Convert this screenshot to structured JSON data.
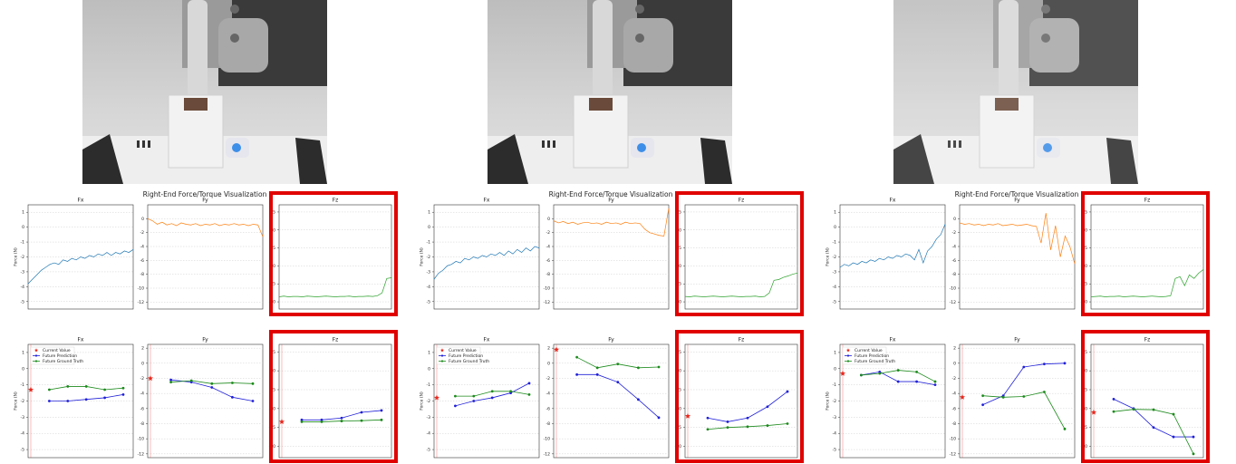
{
  "suptitles": [
    "Right-End Force/Torque Visualization",
    "Right-End Force/Torque Visualization",
    "Right-End Force/Torque Visualization"
  ],
  "chart_data": [
    {
      "type": "line",
      "title": "Fx",
      "ylabel": "Force (N)",
      "ylim": [
        -5.5,
        1.5
      ],
      "yticks": [
        1,
        0,
        -1,
        -2,
        -3,
        -4,
        -5
      ],
      "grid": true,
      "series": [
        {
          "color": "#1f77b4",
          "values": [
            -3.8,
            -3.5,
            -3.2,
            -2.9,
            -2.7,
            -2.5,
            -2.4,
            -2.5,
            -2.2,
            -2.3,
            -2.1,
            -2.2,
            -2.0,
            -2.1,
            -1.9,
            -2.0,
            -1.8,
            -1.9,
            -1.7,
            -1.9,
            -1.7,
            -1.8,
            -1.6,
            -1.7,
            -1.5
          ]
        }
      ]
    },
    {
      "type": "line",
      "title": "Fy",
      "ylim": [
        -13,
        2
      ],
      "yticks": [
        0,
        -2,
        -4,
        -6,
        -8,
        -10,
        -12
      ],
      "grid": true,
      "series": [
        {
          "color": "#ff7f0e",
          "values": [
            0,
            -0.3,
            -0.8,
            -0.5,
            -0.9,
            -0.7,
            -1.0,
            -0.6,
            -0.8,
            -0.9,
            -0.7,
            -1.0,
            -0.8,
            -0.9,
            -0.7,
            -1.0,
            -0.8,
            -0.9,
            -0.7,
            -0.9,
            -0.8,
            -1.0,
            -0.8,
            -0.9,
            -2.6
          ]
        }
      ]
    },
    {
      "type": "line",
      "title": "Fz",
      "ylim": [
        -22,
        7
      ],
      "yticks": [
        5,
        0,
        -5,
        -10,
        -15,
        -20
      ],
      "grid": true,
      "highlight": true,
      "series": [
        {
          "color": "#2ca02c",
          "values": [
            -18.6,
            -18.4,
            -18.6,
            -18.5,
            -18.5,
            -18.6,
            -18.4,
            -18.5,
            -18.6,
            -18.5,
            -18.4,
            -18.5,
            -18.6,
            -18.5,
            -18.5,
            -18.4,
            -18.6,
            -18.5,
            -18.5,
            -18.4,
            -18.5,
            -18.3,
            -17.5,
            -13.5,
            -13.3
          ]
        }
      ]
    },
    {
      "type": "line",
      "title": "Fx",
      "ylabel": "Force (N)",
      "ylim": [
        -5.5,
        1.5
      ],
      "yticks": [
        1,
        0,
        -1,
        -2,
        -3,
        -4,
        -5
      ],
      "grid": true,
      "legend": "upper left",
      "series": [
        {
          "name": "Current Value",
          "color": "#e8281e",
          "marker": "star",
          "values": [
            -1.3,
            null,
            null,
            null,
            null,
            null
          ]
        },
        {
          "name": "Future Prediction",
          "color": "#2020d8",
          "marker": "o",
          "values": [
            null,
            -2.0,
            -2.0,
            -1.9,
            -1.8,
            -1.6
          ]
        },
        {
          "name": "Future Ground Truth",
          "color": "#1c8a1c",
          "marker": "o",
          "values": [
            null,
            -1.3,
            -1.1,
            -1.1,
            -1.3,
            -1.2
          ]
        }
      ]
    },
    {
      "type": "line",
      "title": "Fy",
      "ylim": [
        -12.5,
        2.5
      ],
      "yticks": [
        2,
        0,
        -2,
        -4,
        -6,
        -8,
        -10,
        -12
      ],
      "grid": true,
      "series": [
        {
          "name": "Current Value",
          "color": "#e8281e",
          "marker": "star",
          "values": [
            -2.0,
            null,
            null,
            null,
            null,
            null
          ]
        },
        {
          "name": "Future Prediction",
          "color": "#2020d8",
          "marker": "o",
          "values": [
            null,
            -2.2,
            -2.5,
            -3.2,
            -4.5,
            -5.0
          ]
        },
        {
          "name": "Future Ground Truth",
          "color": "#1c8a1c",
          "marker": "o",
          "values": [
            null,
            -2.5,
            -2.3,
            -2.7,
            -2.6,
            -2.7
          ]
        }
      ]
    },
    {
      "type": "line",
      "title": "Fz",
      "ylim": [
        -23,
        7
      ],
      "yticks": [
        5,
        0,
        -5,
        -10,
        -15,
        -20
      ],
      "grid": true,
      "highlight": true,
      "series": [
        {
          "name": "Current Value",
          "color": "#e8281e",
          "marker": "star",
          "values": [
            -13.5,
            null,
            null,
            null,
            null,
            null
          ]
        },
        {
          "name": "Future Prediction",
          "color": "#2020d8",
          "marker": "o",
          "values": [
            null,
            -13,
            -13,
            -12.5,
            -11,
            -10.5
          ]
        },
        {
          "name": "Future Ground Truth",
          "color": "#1c8a1c",
          "marker": "o",
          "values": [
            null,
            -13.5,
            -13.5,
            -13.3,
            -13.2,
            -13
          ]
        }
      ]
    },
    {
      "type": "line",
      "title": "Fx",
      "ylabel": "Force (N)",
      "ylim": [
        -5.5,
        1.5
      ],
      "yticks": [
        1,
        0,
        -1,
        -2,
        -3,
        -4,
        -5
      ],
      "grid": true,
      "series": [
        {
          "color": "#1f77b4",
          "values": [
            -3.5,
            -3.1,
            -2.9,
            -2.6,
            -2.5,
            -2.3,
            -2.4,
            -2.1,
            -2.2,
            -2.0,
            -2.1,
            -1.9,
            -2.0,
            -1.8,
            -1.9,
            -1.7,
            -1.9,
            -1.6,
            -1.8,
            -1.5,
            -1.7,
            -1.4,
            -1.6,
            -1.3,
            -1.4
          ]
        }
      ]
    },
    {
      "type": "line",
      "title": "Fy",
      "ylim": [
        -13,
        2
      ],
      "yticks": [
        0,
        -2,
        -4,
        -6,
        -8,
        -10,
        -12
      ],
      "grid": true,
      "series": [
        {
          "color": "#ff7f0e",
          "values": [
            -0.3,
            -0.6,
            -0.4,
            -0.7,
            -0.5,
            -0.8,
            -0.6,
            -0.5,
            -0.7,
            -0.6,
            -0.8,
            -0.5,
            -0.7,
            -0.6,
            -0.8,
            -0.5,
            -0.7,
            -0.6,
            -0.7,
            -1.5,
            -2.0,
            -2.2,
            -2.4,
            -2.5,
            1.5
          ]
        }
      ]
    },
    {
      "type": "line",
      "title": "Fz",
      "ylim": [
        -22,
        7
      ],
      "yticks": [
        5,
        0,
        -5,
        -10,
        -15,
        -20
      ],
      "grid": true,
      "highlight": true,
      "series": [
        {
          "color": "#2ca02c",
          "values": [
            -18.5,
            -18.6,
            -18.4,
            -18.5,
            -18.6,
            -18.5,
            -18.4,
            -18.5,
            -18.6,
            -18.5,
            -18.4,
            -18.5,
            -18.6,
            -18.5,
            -18.5,
            -18.4,
            -18.6,
            -18.5,
            -17.5,
            -14.0,
            -13.8,
            -13.2,
            -12.8,
            -12.3,
            -12.0
          ]
        }
      ]
    },
    {
      "type": "line",
      "title": "Fx",
      "ylabel": "Force (N)",
      "ylim": [
        -5.5,
        1.5
      ],
      "yticks": [
        1,
        0,
        -1,
        -2,
        -3,
        -4,
        -5
      ],
      "grid": true,
      "legend": "upper left",
      "series": [
        {
          "name": "Current Value",
          "color": "#e8281e",
          "marker": "star",
          "values": [
            -1.8,
            null,
            null,
            null,
            null,
            null
          ]
        },
        {
          "name": "Future Prediction",
          "color": "#2020d8",
          "marker": "o",
          "values": [
            null,
            -2.3,
            -2.0,
            -1.8,
            -1.5,
            -0.9
          ]
        },
        {
          "name": "Future Ground Truth",
          "color": "#1c8a1c",
          "marker": "o",
          "values": [
            null,
            -1.7,
            -1.7,
            -1.4,
            -1.4,
            -1.6
          ]
        }
      ]
    },
    {
      "type": "line",
      "title": "Fy",
      "ylim": [
        -12.5,
        2.5
      ],
      "yticks": [
        2,
        0,
        -2,
        -4,
        -6,
        -8,
        -10,
        -12
      ],
      "grid": true,
      "series": [
        {
          "name": "Current Value",
          "color": "#e8281e",
          "marker": "star",
          "values": [
            1.8,
            null,
            null,
            null,
            null,
            null
          ]
        },
        {
          "name": "Future Prediction",
          "color": "#2020d8",
          "marker": "o",
          "values": [
            null,
            -1.5,
            -1.5,
            -2.5,
            -4.8,
            -7.2
          ]
        },
        {
          "name": "Future Ground Truth",
          "color": "#1c8a1c",
          "marker": "o",
          "values": [
            null,
            0.8,
            -0.6,
            -0.1,
            -0.6,
            -0.5
          ]
        }
      ]
    },
    {
      "type": "line",
      "title": "Fz",
      "ylim": [
        -23,
        7
      ],
      "yticks": [
        5,
        0,
        -5,
        -10,
        -15,
        -20
      ],
      "grid": true,
      "highlight": true,
      "series": [
        {
          "name": "Current Value",
          "color": "#e8281e",
          "marker": "star",
          "values": [
            -12,
            null,
            null,
            null,
            null,
            null
          ]
        },
        {
          "name": "Future Prediction",
          "color": "#2020d8",
          "marker": "o",
          "values": [
            null,
            -12.5,
            -13.5,
            -12.5,
            -9.5,
            -5.5
          ]
        },
        {
          "name": "Future Ground Truth",
          "color": "#1c8a1c",
          "marker": "o",
          "values": [
            null,
            -15.5,
            -15,
            -14.8,
            -14.5,
            -14
          ]
        }
      ]
    },
    {
      "type": "line",
      "title": "Fx",
      "ylabel": "Force (N)",
      "ylim": [
        -5.5,
        1.5
      ],
      "yticks": [
        1,
        0,
        -1,
        -2,
        -3,
        -4,
        -5
      ],
      "grid": true,
      "series": [
        {
          "color": "#1f77b4",
          "values": [
            -2.7,
            -2.5,
            -2.6,
            -2.4,
            -2.5,
            -2.3,
            -2.4,
            -2.2,
            -2.3,
            -2.1,
            -2.2,
            -2.0,
            -2.1,
            -1.9,
            -2.0,
            -1.8,
            -1.9,
            -2.2,
            -1.5,
            -2.4,
            -1.6,
            -1.3,
            -0.8,
            -0.5,
            0.2
          ]
        }
      ]
    },
    {
      "type": "line",
      "title": "Fy",
      "ylim": [
        -13,
        2
      ],
      "yticks": [
        0,
        -2,
        -4,
        -6,
        -8,
        -10,
        -12
      ],
      "grid": true,
      "series": [
        {
          "color": "#ff7f0e",
          "values": [
            -0.6,
            -0.8,
            -0.7,
            -0.9,
            -0.8,
            -1.0,
            -0.8,
            -0.9,
            -0.7,
            -1.0,
            -0.9,
            -0.8,
            -1.0,
            -0.9,
            -0.8,
            -1.0,
            -1.1,
            -3.5,
            0.8,
            -4.5,
            -1.0,
            -5.5,
            -2.5,
            -4.0,
            -6.5
          ]
        }
      ]
    },
    {
      "type": "line",
      "title": "Fz",
      "ylim": [
        -22,
        7
      ],
      "yticks": [
        5,
        0,
        -5,
        -10,
        -15,
        -20
      ],
      "grid": true,
      "highlight": true,
      "series": [
        {
          "color": "#2ca02c",
          "values": [
            -18.6,
            -18.5,
            -18.4,
            -18.6,
            -18.5,
            -18.5,
            -18.4,
            -18.6,
            -18.5,
            -18.4,
            -18.5,
            -18.6,
            -18.5,
            -18.4,
            -18.5,
            -18.6,
            -18.5,
            -18.3,
            -13.5,
            -13.0,
            -15.5,
            -12.5,
            -13.5,
            -12.0,
            -11.0
          ]
        }
      ]
    },
    {
      "type": "line",
      "title": "Fx",
      "ylabel": "Force (N)",
      "ylim": [
        -5.5,
        1.5
      ],
      "yticks": [
        1,
        0,
        -1,
        -2,
        -3,
        -4,
        -5
      ],
      "grid": true,
      "legend": "upper left",
      "series": [
        {
          "name": "Current Value",
          "color": "#e8281e",
          "marker": "star",
          "values": [
            -0.3,
            null,
            null,
            null,
            null,
            null
          ]
        },
        {
          "name": "Future Prediction",
          "color": "#2020d8",
          "marker": "o",
          "values": [
            null,
            -0.4,
            -0.2,
            -0.8,
            -0.8,
            -1.0
          ]
        },
        {
          "name": "Future Ground Truth",
          "color": "#1c8a1c",
          "marker": "o",
          "values": [
            null,
            -0.4,
            -0.3,
            -0.1,
            -0.2,
            -0.8
          ]
        }
      ]
    },
    {
      "type": "line",
      "title": "Fy",
      "ylim": [
        -12.5,
        2.5
      ],
      "yticks": [
        2,
        0,
        -2,
        -4,
        -6,
        -8,
        -10,
        -12
      ],
      "grid": true,
      "series": [
        {
          "name": "Current Value",
          "color": "#e8281e",
          "marker": "star",
          "values": [
            -4.5,
            null,
            null,
            null,
            null,
            null
          ]
        },
        {
          "name": "Future Prediction",
          "color": "#2020d8",
          "marker": "o",
          "values": [
            null,
            -5.5,
            -4.3,
            -0.5,
            -0.1,
            0.0
          ]
        },
        {
          "name": "Future Ground Truth",
          "color": "#1c8a1c",
          "marker": "o",
          "values": [
            null,
            -4.3,
            -4.5,
            -4.4,
            -3.8,
            -8.7
          ]
        }
      ]
    },
    {
      "type": "line",
      "title": "Fz",
      "ylim": [
        -23,
        7
      ],
      "yticks": [
        5,
        0,
        -5,
        -10,
        -15,
        -20
      ],
      "grid": true,
      "highlight": true,
      "series": [
        {
          "name": "Current Value",
          "color": "#e8281e",
          "marker": "star",
          "values": [
            -11,
            null,
            null,
            null,
            null,
            null
          ]
        },
        {
          "name": "Future Prediction",
          "color": "#2020d8",
          "marker": "o",
          "values": [
            null,
            -7.5,
            -10,
            -15,
            -17.5,
            -17.5
          ]
        },
        {
          "name": "Future Ground Truth",
          "color": "#1c8a1c",
          "marker": "o",
          "values": [
            null,
            -10.8,
            -10.2,
            -10.3,
            -11.5,
            -22
          ]
        }
      ]
    }
  ]
}
